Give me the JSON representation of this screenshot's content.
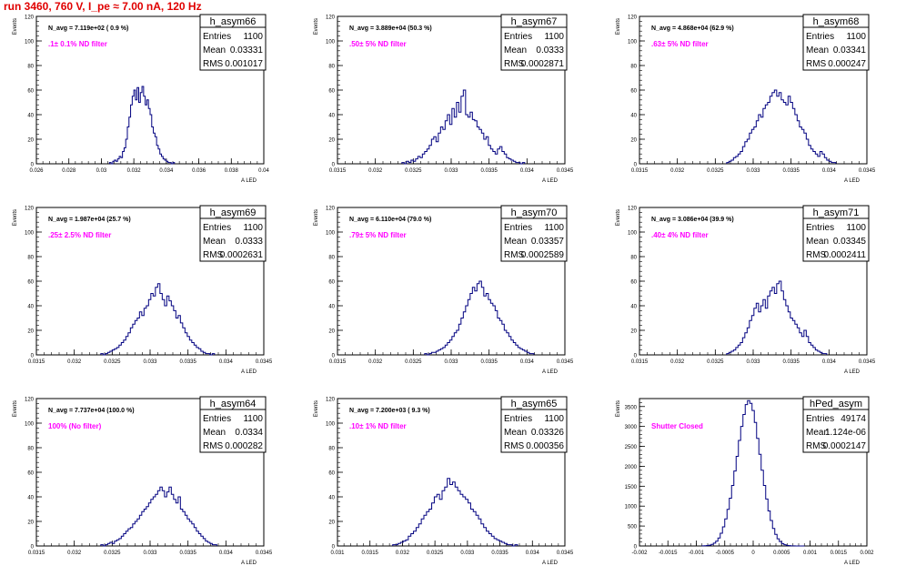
{
  "run_title": "run 3460,   760 V, I_pe ≈ 7.00 nA, 120 Hz",
  "colors": {
    "hist": "#000080",
    "annotation": "#ff00ff",
    "title": "#e00000",
    "frame": "#000000"
  },
  "chart_data": [
    {
      "type": "histogram",
      "name": "h_asym66",
      "navg": "N_avg = 7.119e+02 ( 0.9 %)",
      "filter": ".1± 0.1% ND filter",
      "stats": {
        "entries": "1100",
        "mean": "0.03331",
        "rms": "0.001017"
      },
      "xlim": [
        0.026,
        0.04
      ],
      "xticks": [
        "0.026",
        "0.028",
        "0.03",
        "0.032",
        "0.034",
        "0.036",
        "0.038",
        "0.04"
      ],
      "ylim": [
        0,
        120
      ],
      "yticks": [
        "0",
        "20",
        "40",
        "60",
        "80",
        "100",
        "120"
      ],
      "xlabel": "A_LED",
      "ylabel": "Events",
      "bins": {
        "start": 0.0305,
        "width": 0.0001,
        "counts": [
          1,
          0,
          2,
          3,
          2,
          4,
          6,
          5,
          10,
          13,
          20,
          30,
          38,
          48,
          55,
          60,
          52,
          62,
          50,
          58,
          63,
          55,
          48,
          52,
          45,
          40,
          30,
          25,
          22,
          15,
          12,
          8,
          6,
          4,
          3,
          2,
          1,
          1,
          0,
          1
        ]
      }
    },
    {
      "type": "histogram",
      "name": "h_asym67",
      "navg": "N_avg = 3.889e+04 (50.3 %)",
      "filter": ".50± 5% ND filter",
      "stats": {
        "entries": "1100",
        "mean": "0.0333",
        "rms": "0.0002871"
      },
      "xlim": [
        0.0315,
        0.0345
      ],
      "xticks": [
        "0.0315",
        "0.032",
        "0.0325",
        "0.033",
        "0.0335",
        "0.034",
        "0.0345"
      ],
      "ylim": [
        0,
        120
      ],
      "yticks": [
        "0",
        "20",
        "40",
        "60",
        "80",
        "100",
        "120"
      ],
      "xlabel": "A_LED",
      "ylabel": "Events",
      "bins": {
        "start": 0.03235,
        "width": 3e-05,
        "counts": [
          1,
          0,
          2,
          1,
          3,
          2,
          4,
          6,
          5,
          8,
          10,
          12,
          15,
          20,
          22,
          18,
          25,
          30,
          28,
          35,
          40,
          32,
          45,
          38,
          50,
          42,
          55,
          60,
          40,
          38,
          42,
          36,
          35,
          30,
          28,
          25,
          20,
          22,
          15,
          12,
          10,
          8,
          12,
          14,
          10,
          8,
          5,
          4,
          3,
          2,
          1,
          1,
          0,
          1
        ]
      }
    },
    {
      "type": "histogram",
      "name": "h_asym68",
      "navg": "N_avg = 4.868e+04 (62.9 %)",
      "filter": ".63± 5% ND filter",
      "stats": {
        "entries": "1100",
        "mean": "0.03341",
        "rms": "0.000247"
      },
      "xlim": [
        0.0315,
        0.0345
      ],
      "xticks": [
        "0.0315",
        "0.032",
        "0.0325",
        "0.033",
        "0.0335",
        "0.034",
        "0.0345"
      ],
      "ylim": [
        0,
        120
      ],
      "yticks": [
        "0",
        "20",
        "40",
        "60",
        "80",
        "100",
        "120"
      ],
      "xlabel": "A_LED",
      "ylabel": "Events",
      "bins": {
        "start": 0.03265,
        "width": 3e-05,
        "counts": [
          1,
          2,
          3,
          5,
          6,
          8,
          10,
          14,
          18,
          20,
          25,
          28,
          30,
          35,
          40,
          38,
          45,
          48,
          50,
          55,
          58,
          60,
          55,
          58,
          52,
          50,
          48,
          55,
          50,
          45,
          40,
          35,
          30,
          28,
          25,
          20,
          15,
          12,
          10,
          8,
          6,
          10,
          8,
          5,
          3,
          2,
          1,
          1
        ]
      }
    },
    {
      "type": "histogram",
      "name": "h_asym69",
      "navg": "N_avg = 1.987e+04 (25.7 %)",
      "filter": ".25± 2.5% ND filter",
      "stats": {
        "entries": "1100",
        "mean": "0.0333",
        "rms": "0.0002631"
      },
      "xlim": [
        0.0315,
        0.0345
      ],
      "xticks": [
        "0.0315",
        "0.032",
        "0.0325",
        "0.033",
        "0.0335",
        "0.034",
        "0.0345"
      ],
      "ylim": [
        0,
        120
      ],
      "yticks": [
        "0",
        "20",
        "40",
        "60",
        "80",
        "100",
        "120"
      ],
      "xlabel": "A_LED",
      "ylabel": "Events",
      "bins": {
        "start": 0.03235,
        "width": 3e-05,
        "counts": [
          1,
          0,
          1,
          2,
          3,
          4,
          5,
          6,
          8,
          10,
          12,
          15,
          18,
          22,
          25,
          28,
          30,
          35,
          32,
          38,
          40,
          45,
          50,
          48,
          55,
          58,
          50,
          45,
          40,
          48,
          44,
          40,
          36,
          30,
          32,
          26,
          22,
          18,
          15,
          12,
          10,
          8,
          6,
          5,
          3,
          2,
          1,
          1,
          0,
          1
        ]
      }
    },
    {
      "type": "histogram",
      "name": "h_asym70",
      "navg": "N_avg = 6.110e+04 (79.0 %)",
      "filter": ".79± 5% ND filter",
      "stats": {
        "entries": "1100",
        "mean": "0.03357",
        "rms": "0.0002589"
      },
      "xlim": [
        0.0315,
        0.0345
      ],
      "xticks": [
        "0.0315",
        "0.032",
        "0.0325",
        "0.033",
        "0.0335",
        "0.034",
        "0.0345"
      ],
      "ylim": [
        0,
        120
      ],
      "yticks": [
        "0",
        "20",
        "40",
        "60",
        "80",
        "100",
        "120"
      ],
      "xlabel": "A_LED",
      "ylabel": "Events",
      "bins": {
        "start": 0.03265,
        "width": 3e-05,
        "counts": [
          1,
          0,
          1,
          2,
          2,
          3,
          4,
          5,
          6,
          8,
          10,
          12,
          15,
          18,
          20,
          25,
          30,
          35,
          40,
          45,
          50,
          55,
          52,
          58,
          60,
          55,
          48,
          50,
          45,
          42,
          40,
          36,
          30,
          28,
          25,
          20,
          18,
          15,
          12,
          10,
          8,
          6,
          5,
          4,
          3,
          2,
          1,
          1
        ]
      }
    },
    {
      "type": "histogram",
      "name": "h_asym71",
      "navg": "N_avg = 3.086e+04 (39.9 %)",
      "filter": ".40± 4% ND filter",
      "stats": {
        "entries": "1100",
        "mean": "0.03345",
        "rms": "0.0002411"
      },
      "xlim": [
        0.0315,
        0.0345
      ],
      "xticks": [
        "0.0315",
        "0.032",
        "0.0325",
        "0.033",
        "0.0335",
        "0.034",
        "0.0345"
      ],
      "ylim": [
        0,
        120
      ],
      "yticks": [
        "0",
        "20",
        "40",
        "60",
        "80",
        "100",
        "120"
      ],
      "xlabel": "A_LED",
      "ylabel": "Events",
      "bins": {
        "start": 0.03265,
        "width": 3e-05,
        "counts": [
          1,
          2,
          3,
          4,
          6,
          8,
          10,
          14,
          18,
          22,
          28,
          32,
          38,
          42,
          35,
          40,
          45,
          38,
          48,
          52,
          55,
          50,
          58,
          60,
          52,
          45,
          40,
          35,
          30,
          28,
          25,
          22,
          18,
          15,
          20,
          15,
          10,
          8,
          6,
          4,
          3,
          2,
          1,
          1
        ]
      }
    },
    {
      "type": "histogram",
      "name": "h_asym64",
      "navg": "N_avg = 7.737e+04 (100.0 %)",
      "filter": "100% (No filter)",
      "stats": {
        "entries": "1100",
        "mean": "0.0334",
        "rms": "0.000282"
      },
      "xlim": [
        0.0315,
        0.0345
      ],
      "xticks": [
        "0.0315",
        "0.032",
        "0.0325",
        "0.033",
        "0.0335",
        "0.034",
        "0.0345"
      ],
      "ylim": [
        0,
        120
      ],
      "yticks": [
        "0",
        "20",
        "40",
        "60",
        "80",
        "100",
        "120"
      ],
      "xlabel": "A_LED",
      "ylabel": "Events",
      "bins": {
        "start": 0.03235,
        "width": 3e-05,
        "counts": [
          1,
          0,
          1,
          2,
          3,
          2,
          4,
          5,
          6,
          8,
          10,
          12,
          14,
          15,
          18,
          20,
          22,
          25,
          28,
          30,
          32,
          35,
          38,
          40,
          42,
          45,
          48,
          45,
          40,
          44,
          48,
          42,
          38,
          35,
          40,
          30,
          28,
          25,
          22,
          20,
          18,
          15,
          12,
          10,
          8,
          6,
          4,
          3,
          2,
          1,
          1
        ]
      }
    },
    {
      "type": "histogram",
      "name": "h_asym65",
      "navg": "N_avg = 7.200e+03 ( 9.3 %)",
      "filter": ".10± 1% ND filter",
      "stats": {
        "entries": "1100",
        "mean": "0.03326",
        "rms": "0.000356"
      },
      "xlim": [
        0.031,
        0.0345
      ],
      "xticks": [
        "0.031",
        "0.0315",
        "0.032",
        "0.0325",
        "0.033",
        "0.0335",
        "0.034",
        "0.0345"
      ],
      "ylim": [
        0,
        120
      ],
      "yticks": [
        "0",
        "20",
        "40",
        "60",
        "80",
        "100",
        "120"
      ],
      "xlabel": "A_LED",
      "ylabel": "Events",
      "bins": {
        "start": 0.03185,
        "width": 4e-05,
        "counts": [
          1,
          1,
          2,
          3,
          4,
          5,
          8,
          10,
          12,
          15,
          18,
          22,
          25,
          28,
          30,
          35,
          40,
          42,
          38,
          45,
          48,
          55,
          50,
          52,
          48,
          45,
          42,
          40,
          38,
          35,
          30,
          28,
          25,
          22,
          18,
          15,
          12,
          10,
          8,
          6,
          5,
          4,
          3,
          2,
          1,
          1,
          0,
          1
        ]
      }
    },
    {
      "type": "histogram",
      "name": "hPed_asym",
      "navg": "",
      "filter": "Shutter Closed",
      "stats": {
        "entries": "49174",
        "mean": "1.124e-06",
        "rms": "0.0002147"
      },
      "xlim": [
        -0.002,
        0.002
      ],
      "xticks": [
        "-0.002",
        "-0.0015",
        "-0.001",
        "-0.0005",
        "0",
        "0.0005",
        "0.001",
        "0.0015",
        "0.002"
      ],
      "ylim": [
        0,
        3700
      ],
      "yticks": [
        "0",
        "500",
        "1000",
        "1500",
        "2000",
        "2500",
        "3000",
        "3500"
      ],
      "xlabel": "A_LED",
      "ylabel": "Events",
      "bins": {
        "start": -0.0009,
        "width": 4e-05,
        "counts": [
          2,
          5,
          10,
          20,
          40,
          70,
          120,
          200,
          320,
          480,
          680,
          920,
          1200,
          1520,
          1880,
          2250,
          2650,
          3000,
          3300,
          3550,
          3650,
          3580,
          3400,
          3100,
          2700,
          2300,
          1900,
          1520,
          1180,
          880,
          640,
          440,
          290,
          180,
          110,
          60,
          30,
          15,
          8,
          4,
          2,
          1,
          1,
          0,
          1
        ]
      }
    }
  ]
}
